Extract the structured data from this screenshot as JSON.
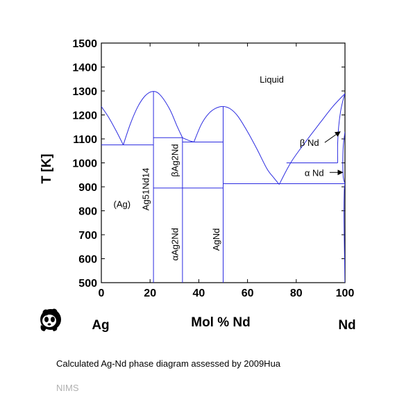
{
  "chart_data": {
    "type": "line",
    "title": "",
    "xlabel": "Mol % Nd",
    "ylabel": "T [K]",
    "left_element": "Ag",
    "right_element": "Nd",
    "xlim": [
      0,
      100
    ],
    "ylim": [
      500,
      1500
    ],
    "xticks": [
      0,
      20,
      40,
      60,
      80,
      100
    ],
    "yticks": [
      500,
      600,
      700,
      800,
      900,
      1000,
      1100,
      1200,
      1300,
      1400,
      1500
    ],
    "grid": false,
    "line_color": "#2a2ae0",
    "liquidus": [
      {
        "x": [
          0,
          3,
          6,
          9
        ],
        "y": [
          1235,
          1190,
          1135,
          1075
        ]
      },
      {
        "x": [
          9,
          12,
          15,
          18,
          21,
          24,
          28,
          31,
          33.3
        ],
        "y": [
          1075,
          1165,
          1235,
          1280,
          1298,
          1285,
          1225,
          1155,
          1105
        ]
      },
      {
        "x": [
          33.3,
          36,
          38
        ],
        "y": [
          1105,
          1093,
          1087
        ]
      },
      {
        "x": [
          38,
          41,
          44,
          47,
          50,
          53,
          56,
          60,
          64,
          68,
          71,
          73
        ],
        "y": [
          1087,
          1160,
          1205,
          1228,
          1235,
          1225,
          1195,
          1130,
          1055,
          975,
          935,
          910
        ]
      },
      {
        "x": [
          73,
          78,
          84,
          90,
          95,
          100
        ],
        "y": [
          910,
          1005,
          1090,
          1170,
          1235,
          1289
        ]
      }
    ],
    "other_lines": [
      {
        "x": [
          0,
          21.4
        ],
        "y": [
          1075,
          1075
        ]
      },
      {
        "x": [
          21.4,
          33.3
        ],
        "y": [
          1105,
          1105
        ]
      },
      {
        "x": [
          33.3,
          50
        ],
        "y": [
          1087,
          1087
        ]
      },
      {
        "x": [
          21.4,
          50
        ],
        "y": [
          895,
          895
        ]
      },
      {
        "x": [
          50,
          100
        ],
        "y": [
          913,
          913
        ]
      },
      {
        "x": [
          76,
          97
        ],
        "y": [
          1000,
          1000
        ]
      },
      {
        "x": [
          21.4,
          21.4
        ],
        "y": [
          500,
          1298
        ]
      },
      {
        "x": [
          33.3,
          33.3
        ],
        "y": [
          500,
          1105
        ]
      },
      {
        "x": [
          50,
          50
        ],
        "y": [
          500,
          1235
        ]
      },
      {
        "x": [
          97,
          97,
          97.4,
          98.2,
          99.2,
          100
        ],
        "y": [
          1000,
          1080,
          1150,
          1215,
          1262,
          1289
        ]
      },
      {
        "x": [
          100,
          99.3,
          99.1,
          99.3,
          100
        ],
        "y": [
          1130,
          1070,
          1000,
          940,
          913
        ]
      },
      {
        "x": [
          100,
          99.7,
          99.6,
          100
        ],
        "y": [
          913,
          880,
          760,
          500
        ]
      }
    ],
    "regions": [
      {
        "label": "Liquid",
        "x": 65,
        "y": 1335
      },
      {
        "label": "(Ag)",
        "x": 5,
        "y": 815
      },
      {
        "label": "Ag51Nd14",
        "x": 19.5,
        "y": 890,
        "rotated": true
      },
      {
        "label": "βAg2Nd",
        "x": 31.5,
        "y": 1010,
        "rotated": true
      },
      {
        "label": "αAg2Nd",
        "x": 31.5,
        "y": 660,
        "rotated": true
      },
      {
        "label": "AgNd",
        "x": 48.5,
        "y": 680,
        "rotated": true
      }
    ],
    "annotations": [
      {
        "label": "β Nd",
        "x": 86,
        "y": 1085,
        "arrow_to": [
          98,
          1130
        ]
      },
      {
        "label": "α Nd",
        "x": 88,
        "y": 960,
        "arrow_to": [
          99,
          960
        ]
      }
    ]
  },
  "caption": "Calculated Ag-Nd phase diagram assessed by 2009Hua",
  "source": "NIMS",
  "logo_icon": "panda-logo-icon"
}
